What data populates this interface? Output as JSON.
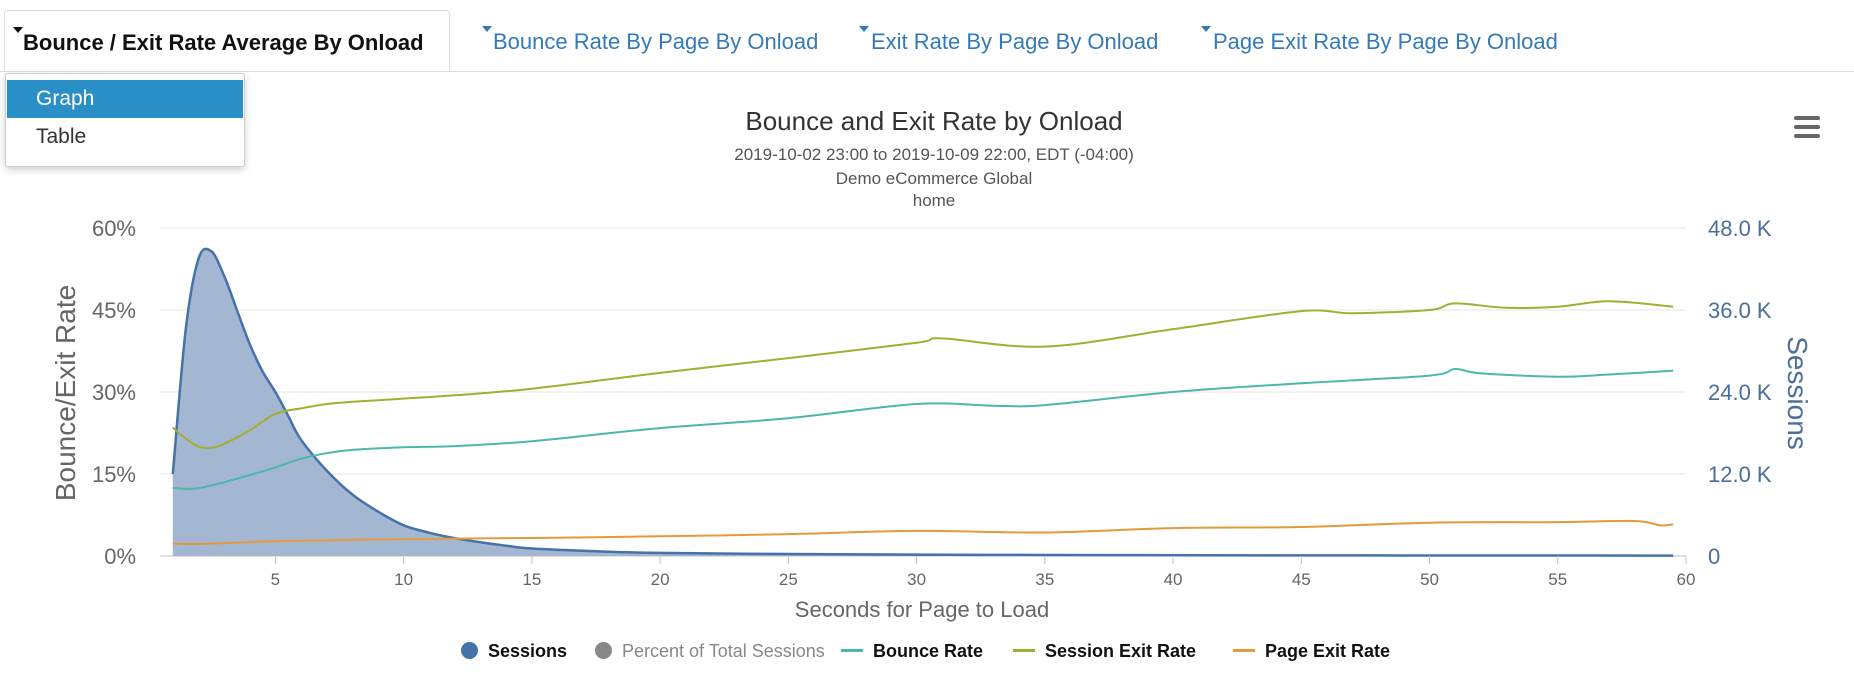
{
  "tabs": [
    {
      "label": "Bounce / Exit Rate Average By Onload",
      "active": true
    },
    {
      "label": "Bounce Rate By Page By Onload",
      "active": false
    },
    {
      "label": "Exit Rate By Page By Onload",
      "active": false
    },
    {
      "label": "Page Exit Rate By Page By Onload",
      "active": false
    }
  ],
  "dropdown": {
    "items": [
      "Graph",
      "Table"
    ],
    "selected": "Graph"
  },
  "menu_icon": "hamburger-menu-icon",
  "colors": {
    "sessions": "#4572a7",
    "sessions_fill": "#9fb3d0",
    "percent_total": "#888888",
    "bounce_rate": "#4bb8a9",
    "session_exit_rate": "#a3ae32",
    "page_exit_rate": "#e39a3b",
    "axis_text": "#666666",
    "right_axis_text": "#4a6f99"
  },
  "chart_data": {
    "type": "line",
    "title": "Bounce and Exit Rate by Onload",
    "subtitle_lines": [
      "2019-10-02 23:00 to 2019-10-09 22:00, EDT (-04:00)",
      "Demo eCommerce Global",
      "home"
    ],
    "xlabel": "Seconds for Page to Load",
    "ylabel_left": "Bounce/Exit Rate",
    "ylabel_right": "Sessions",
    "xlim": [
      0.5,
      60
    ],
    "x_ticks": [
      5,
      10,
      15,
      20,
      25,
      30,
      35,
      40,
      45,
      50,
      55,
      60
    ],
    "x_tick_labels": [
      "5",
      "10",
      "15",
      "20",
      "25",
      "30",
      "35",
      "40",
      "45",
      "50",
      "55",
      "60"
    ],
    "ylim_left": [
      0,
      60
    ],
    "y_left_ticks": [
      0,
      15,
      30,
      45,
      60
    ],
    "y_left_tick_labels": [
      "0%",
      "15%",
      "30%",
      "45%",
      "60%"
    ],
    "ylim_right": [
      0,
      48000
    ],
    "y_right_ticks": [
      0,
      12000,
      24000,
      36000,
      48000
    ],
    "y_right_tick_labels": [
      "0",
      "12.0 K",
      "24.0 K",
      "36.0 K",
      "48.0 K"
    ],
    "grid": true,
    "legend_position": "bottom",
    "legend": [
      "Sessions",
      "Percent of Total Sessions",
      "Bounce Rate",
      "Session Exit Rate",
      "Page Exit Rate"
    ],
    "series": [
      {
        "name": "Sessions",
        "axis": "right",
        "kind": "area",
        "x": [
          1,
          1.5,
          2,
          2.5,
          3,
          3.5,
          4,
          4.5,
          5,
          5.5,
          6,
          7,
          8,
          9,
          10,
          11,
          12,
          13,
          14,
          15,
          17.5,
          20,
          25,
          30,
          35,
          40,
          45,
          50,
          55,
          59.5
        ],
        "values": [
          12000,
          33000,
          43500,
          44600,
          41000,
          36000,
          31000,
          27000,
          24000,
          20500,
          17000,
          12500,
          9000,
          6500,
          4500,
          3400,
          2600,
          2000,
          1500,
          1100,
          700,
          450,
          300,
          200,
          150,
          110,
          90,
          80,
          70,
          60
        ]
      },
      {
        "name": "Bounce Rate",
        "axis": "left",
        "x": [
          1,
          1.5,
          2,
          3,
          4,
          5,
          6,
          7,
          8,
          10,
          12,
          15,
          20,
          25,
          30,
          33,
          35,
          40,
          45,
          50,
          51,
          52,
          55,
          57,
          59.5
        ],
        "values": [
          12.5,
          12.3,
          12.4,
          13.5,
          14.8,
          16.2,
          17.8,
          18.8,
          19.4,
          19.9,
          20.1,
          21.0,
          23.4,
          25.2,
          27.8,
          27.5,
          27.6,
          30.0,
          31.6,
          33.0,
          34.2,
          33.4,
          32.8,
          33.2,
          33.9
        ]
      },
      {
        "name": "Session Exit Rate",
        "axis": "left",
        "x": [
          1,
          1.5,
          2,
          2.5,
          3,
          4,
          5,
          6,
          7,
          8,
          10,
          12,
          15,
          20,
          25,
          30,
          31,
          35,
          40,
          45,
          47,
          50,
          51,
          53,
          55,
          57,
          59.5
        ],
        "values": [
          23.5,
          21.5,
          20.0,
          19.8,
          20.5,
          23.0,
          26.0,
          27.0,
          27.8,
          28.2,
          28.8,
          29.4,
          30.6,
          33.5,
          36.2,
          39.0,
          39.8,
          38.3,
          41.5,
          44.8,
          44.4,
          45.0,
          46.2,
          45.4,
          45.6,
          46.6,
          45.6
        ]
      },
      {
        "name": "Page Exit Rate",
        "axis": "left",
        "x": [
          1,
          2,
          5,
          10,
          15,
          20,
          25,
          30,
          35,
          40,
          45,
          50,
          55,
          58,
          59,
          59.5
        ],
        "values": [
          2.3,
          2.2,
          2.7,
          3.1,
          3.3,
          3.6,
          4.0,
          4.6,
          4.3,
          5.1,
          5.3,
          6.1,
          6.2,
          6.4,
          5.6,
          5.8
        ]
      }
    ]
  }
}
